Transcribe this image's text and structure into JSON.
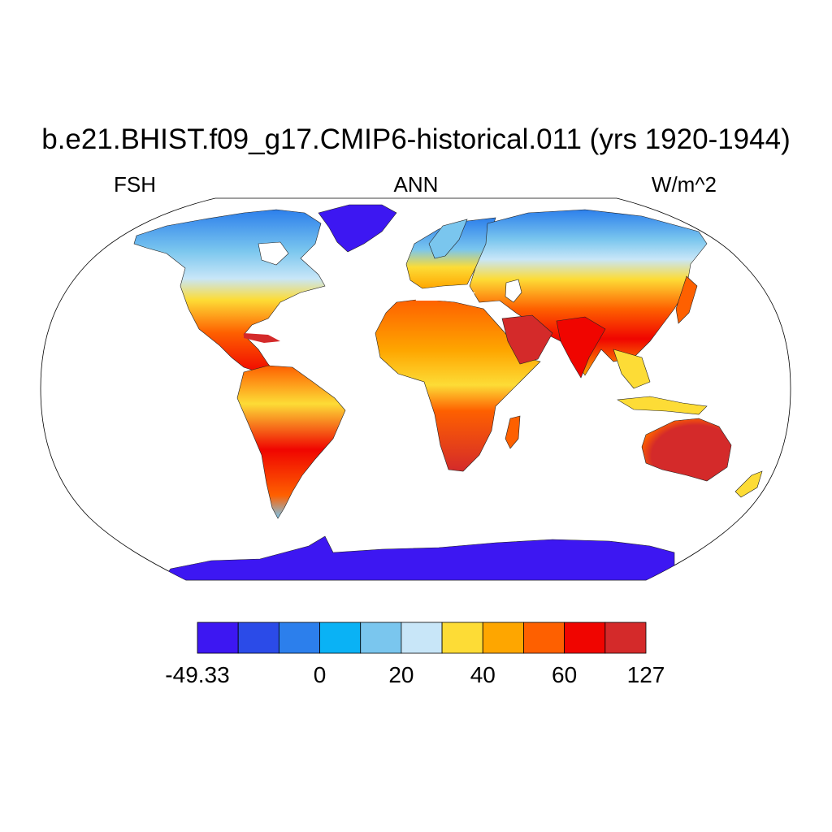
{
  "title": "b.e21.BHIST.f09_g17.CMIP6-historical.011 (yrs 1920-1944)",
  "variable": "FSH",
  "season": "ANN",
  "units": "W/m^2",
  "map": {
    "projection": "Robinson",
    "ocean_color": "#ffffff",
    "continents": [
      {
        "name": "North America",
        "fill": "#f2c240"
      },
      {
        "name": "Greenland",
        "fill": "#3d17f2"
      },
      {
        "name": "South America",
        "fill": "#e84528"
      },
      {
        "name": "Europe",
        "fill": "#86c8ee"
      },
      {
        "name": "Africa",
        "fill": "#f07a1a"
      },
      {
        "name": "Asia",
        "fill": "#f59a2a"
      },
      {
        "name": "Australia",
        "fill": "#d62828"
      },
      {
        "name": "Antarctica",
        "fill": "#3d17f2"
      }
    ]
  },
  "colorbar": {
    "colors": [
      "#3d17f2",
      "#2b4be8",
      "#2c7fec",
      "#0ab2f5",
      "#7ac6ee",
      "#c8e6f8",
      "#fddc36",
      "#fea600",
      "#fe6000",
      "#f00500",
      "#d42a2a"
    ],
    "tick_labels": [
      "-49.33",
      "0",
      "20",
      "40",
      "60",
      "127"
    ],
    "tick_boundaries": [
      0,
      3,
      5,
      7,
      9,
      11
    ]
  }
}
